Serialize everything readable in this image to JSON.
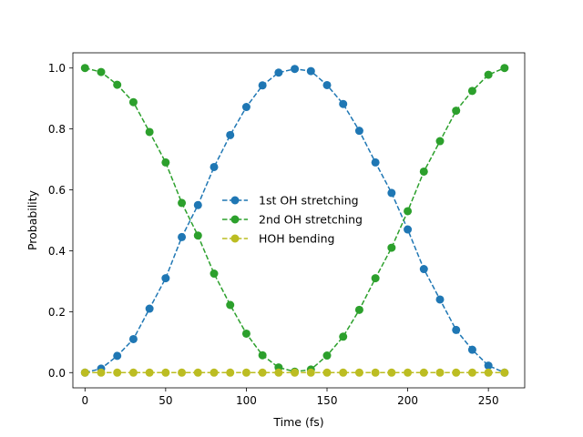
{
  "chart_data": {
    "type": "line",
    "title": "",
    "xlabel": "Time (fs)",
    "ylabel": "Probability",
    "xlim": [
      -7.5,
      272.5
    ],
    "ylim": [
      -0.05,
      1.05
    ],
    "xticks": [
      0,
      50,
      100,
      150,
      200,
      250
    ],
    "yticks": [
      0.0,
      0.2,
      0.4,
      0.6,
      0.8,
      1.0
    ],
    "ytick_labels": [
      "0.0",
      "0.2",
      "0.4",
      "0.6",
      "0.8",
      "1.0"
    ],
    "grid": false,
    "legend_position": "center",
    "x": [
      0,
      10,
      20,
      30,
      40,
      50,
      60,
      70,
      80,
      90,
      100,
      110,
      120,
      130,
      140,
      150,
      160,
      170,
      180,
      190,
      200,
      210,
      220,
      230,
      240,
      250,
      260
    ],
    "series": [
      {
        "name": "1st OH stretching",
        "color": "#1f77b4",
        "values": [
          0.0,
          0.013,
          0.055,
          0.11,
          0.21,
          0.31,
          0.445,
          0.55,
          0.675,
          0.78,
          0.872,
          0.943,
          0.985,
          0.997,
          0.99,
          0.944,
          0.882,
          0.794,
          0.69,
          0.59,
          0.47,
          0.34,
          0.24,
          0.14,
          0.075,
          0.023,
          0.0
        ]
      },
      {
        "name": "2nd OH stretching",
        "color": "#2ca02c",
        "values": [
          1.0,
          0.987,
          0.945,
          0.888,
          0.79,
          0.69,
          0.557,
          0.45,
          0.325,
          0.222,
          0.128,
          0.057,
          0.017,
          0.003,
          0.01,
          0.056,
          0.118,
          0.206,
          0.31,
          0.41,
          0.53,
          0.66,
          0.76,
          0.86,
          0.925,
          0.978,
          1.0
        ]
      },
      {
        "name": "HOH bending",
        "color": "#bcbd22",
        "values": [
          0,
          0,
          0,
          0,
          0,
          0,
          0,
          0,
          0,
          0,
          0,
          0,
          0,
          0,
          0,
          0,
          0,
          0,
          0,
          0,
          0,
          0,
          0,
          0,
          0,
          0,
          0
        ]
      }
    ]
  }
}
